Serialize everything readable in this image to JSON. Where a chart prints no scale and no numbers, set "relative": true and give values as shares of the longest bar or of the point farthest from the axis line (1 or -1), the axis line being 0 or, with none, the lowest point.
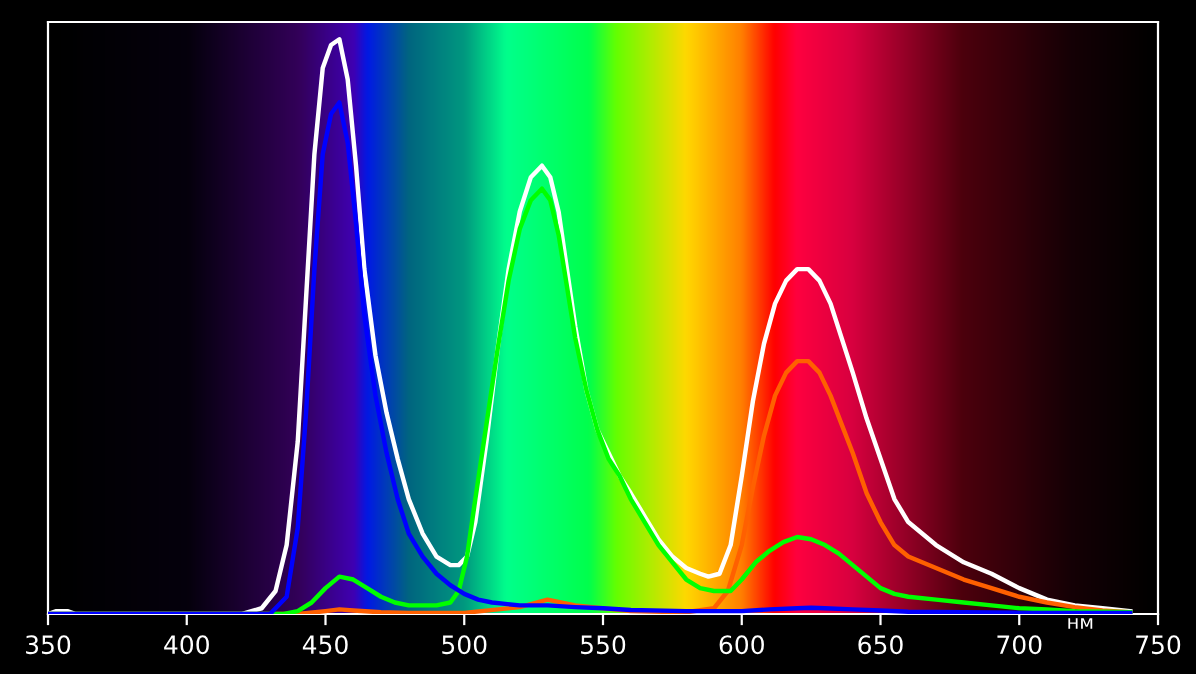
{
  "chart_data": {
    "type": "line",
    "relative": true,
    "xlabel": "нм",
    "xlim": [
      350,
      750
    ],
    "xticks": [
      350,
      400,
      450,
      500,
      550,
      600,
      650,
      700,
      750
    ],
    "grid": false,
    "legend": false,
    "line_style": "solid",
    "marker": "none",
    "series": [
      {
        "color": "#ffffff",
        "x": [
          350,
          353,
          357,
          360,
          420,
          427,
          432,
          436,
          440,
          443,
          446,
          449,
          452,
          455,
          458,
          461,
          464,
          468,
          472,
          476,
          480,
          485,
          490,
          495,
          498,
          501,
          504,
          508,
          512,
          516,
          520,
          524,
          528,
          531,
          534,
          537,
          540,
          544,
          548,
          552,
          556,
          560,
          565,
          570,
          575,
          580,
          585,
          588,
          592,
          596,
          600,
          604,
          608,
          612,
          616,
          620,
          624,
          628,
          632,
          636,
          640,
          645,
          650,
          655,
          660,
          665,
          670,
          680,
          690,
          700,
          710,
          720,
          730,
          740
        ],
        "values": [
          0,
          0.005,
          0.005,
          0,
          0,
          0.01,
          0.04,
          0.12,
          0.3,
          0.55,
          0.8,
          0.95,
          0.99,
          1.0,
          0.93,
          0.78,
          0.6,
          0.45,
          0.35,
          0.27,
          0.2,
          0.14,
          0.1,
          0.085,
          0.085,
          0.1,
          0.16,
          0.3,
          0.46,
          0.6,
          0.7,
          0.76,
          0.78,
          0.76,
          0.7,
          0.6,
          0.5,
          0.39,
          0.32,
          0.28,
          0.24,
          0.21,
          0.17,
          0.13,
          0.1,
          0.08,
          0.07,
          0.065,
          0.07,
          0.12,
          0.24,
          0.37,
          0.47,
          0.54,
          0.58,
          0.6,
          0.6,
          0.58,
          0.54,
          0.48,
          0.42,
          0.34,
          0.27,
          0.2,
          0.16,
          0.14,
          0.12,
          0.09,
          0.07,
          0.045,
          0.025,
          0.015,
          0.01,
          0.005
        ]
      },
      {
        "color": "#ff6000",
        "x": [
          350,
          440,
          450,
          455,
          460,
          470,
          480,
          500,
          520,
          530,
          540,
          560,
          580,
          590,
          595,
          600,
          604,
          608,
          612,
          616,
          620,
          624,
          628,
          632,
          636,
          640,
          645,
          650,
          655,
          660,
          665,
          670,
          680,
          690,
          700,
          710,
          720,
          730,
          740
        ],
        "values": [
          0,
          0,
          0.005,
          0.008,
          0.006,
          0.003,
          0.002,
          0.002,
          0.012,
          0.025,
          0.015,
          0.005,
          0.003,
          0.01,
          0.04,
          0.12,
          0.22,
          0.31,
          0.38,
          0.42,
          0.44,
          0.44,
          0.42,
          0.38,
          0.33,
          0.28,
          0.21,
          0.16,
          0.12,
          0.1,
          0.09,
          0.08,
          0.06,
          0.045,
          0.03,
          0.02,
          0.012,
          0.006,
          0.003
        ]
      },
      {
        "color": "#00ff00",
        "x": [
          350,
          435,
          440,
          445,
          450,
          455,
          460,
          465,
          470,
          475,
          480,
          490,
          495,
          498,
          501,
          504,
          508,
          512,
          516,
          520,
          524,
          528,
          531,
          534,
          537,
          540,
          544,
          548,
          552,
          556,
          560,
          565,
          570,
          575,
          580,
          585,
          590,
          596,
          600,
          605,
          610,
          615,
          620,
          625,
          630,
          635,
          640,
          645,
          650,
          655,
          660,
          670,
          680,
          690,
          700,
          710,
          720,
          740
        ],
        "values": [
          0,
          0,
          0.005,
          0.02,
          0.045,
          0.065,
          0.06,
          0.045,
          0.03,
          0.02,
          0.015,
          0.015,
          0.02,
          0.04,
          0.1,
          0.2,
          0.33,
          0.46,
          0.58,
          0.67,
          0.72,
          0.74,
          0.72,
          0.66,
          0.57,
          0.48,
          0.39,
          0.32,
          0.27,
          0.24,
          0.2,
          0.16,
          0.12,
          0.09,
          0.06,
          0.045,
          0.04,
          0.04,
          0.06,
          0.09,
          0.11,
          0.125,
          0.134,
          0.13,
          0.12,
          0.105,
          0.085,
          0.065,
          0.045,
          0.035,
          0.03,
          0.025,
          0.02,
          0.015,
          0.01,
          0.008,
          0.005,
          0.003
        ]
      },
      {
        "color": "#0000ff",
        "x": [
          350,
          430,
          436,
          440,
          443,
          446,
          449,
          452,
          455,
          458,
          461,
          464,
          468,
          472,
          476,
          480,
          485,
          490,
          495,
          500,
          505,
          510,
          520,
          530,
          540,
          550,
          560,
          580,
          600,
          610,
          620,
          625,
          630,
          640,
          650,
          660,
          680,
          700,
          720,
          740
        ],
        "values": [
          0,
          0,
          0.03,
          0.15,
          0.35,
          0.6,
          0.8,
          0.87,
          0.89,
          0.82,
          0.68,
          0.52,
          0.38,
          0.28,
          0.2,
          0.14,
          0.1,
          0.07,
          0.05,
          0.035,
          0.025,
          0.02,
          0.015,
          0.015,
          0.012,
          0.01,
          0.007,
          0.005,
          0.005,
          0.008,
          0.01,
          0.011,
          0.01,
          0.008,
          0.006,
          0.004,
          0.003,
          0.002,
          0.002,
          0.002
        ]
      }
    ]
  }
}
